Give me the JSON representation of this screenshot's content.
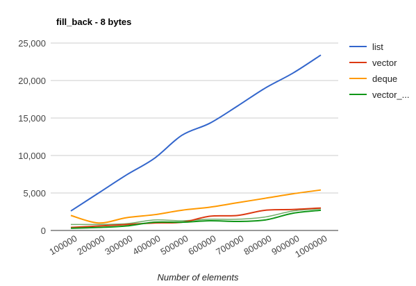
{
  "chart_data": {
    "type": "line",
    "title": "fill_back - 8 bytes",
    "xlabel": "Number of elements",
    "ylabel": "",
    "x": [
      100000,
      200000,
      300000,
      400000,
      500000,
      600000,
      700000,
      800000,
      900000,
      1000000
    ],
    "x_tick_labels": [
      "100000",
      "200000",
      "300000",
      "400000",
      "500000",
      "600000",
      "700000",
      "800000",
      "900000",
      "1000000"
    ],
    "ylim": [
      0,
      25000
    ],
    "y_ticks": [
      0,
      5000,
      10000,
      15000,
      20000,
      25000
    ],
    "y_tick_labels": [
      "0",
      "5,000",
      "10,000",
      "15,000",
      "20,000",
      "25,000"
    ],
    "grid": true,
    "legend_position": "right",
    "series": [
      {
        "name": "list",
        "color": "#3366cc",
        "values": [
          2600,
          5000,
          7400,
          9600,
          12700,
          14300,
          16600,
          19000,
          21000,
          23400
        ]
      },
      {
        "name": "vector",
        "color": "#dc3912",
        "values": [
          400,
          600,
          800,
          1000,
          1100,
          1900,
          2000,
          2700,
          2800,
          3000
        ]
      },
      {
        "name": "deque",
        "color": "#ff9900",
        "values": [
          2000,
          1000,
          1700,
          2100,
          2700,
          3100,
          3700,
          4300,
          4900,
          5400
        ]
      },
      {
        "name": "vector_...",
        "color": "#109618",
        "values": [
          300,
          400,
          600,
          1100,
          1100,
          1300,
          1200,
          1400,
          2300,
          2700
        ]
      },
      {
        "name": "",
        "color": "#72ad6a",
        "values": [
          800,
          800,
          900,
          1400,
          1300,
          1500,
          1500,
          1800,
          2600,
          2900
        ]
      }
    ]
  }
}
